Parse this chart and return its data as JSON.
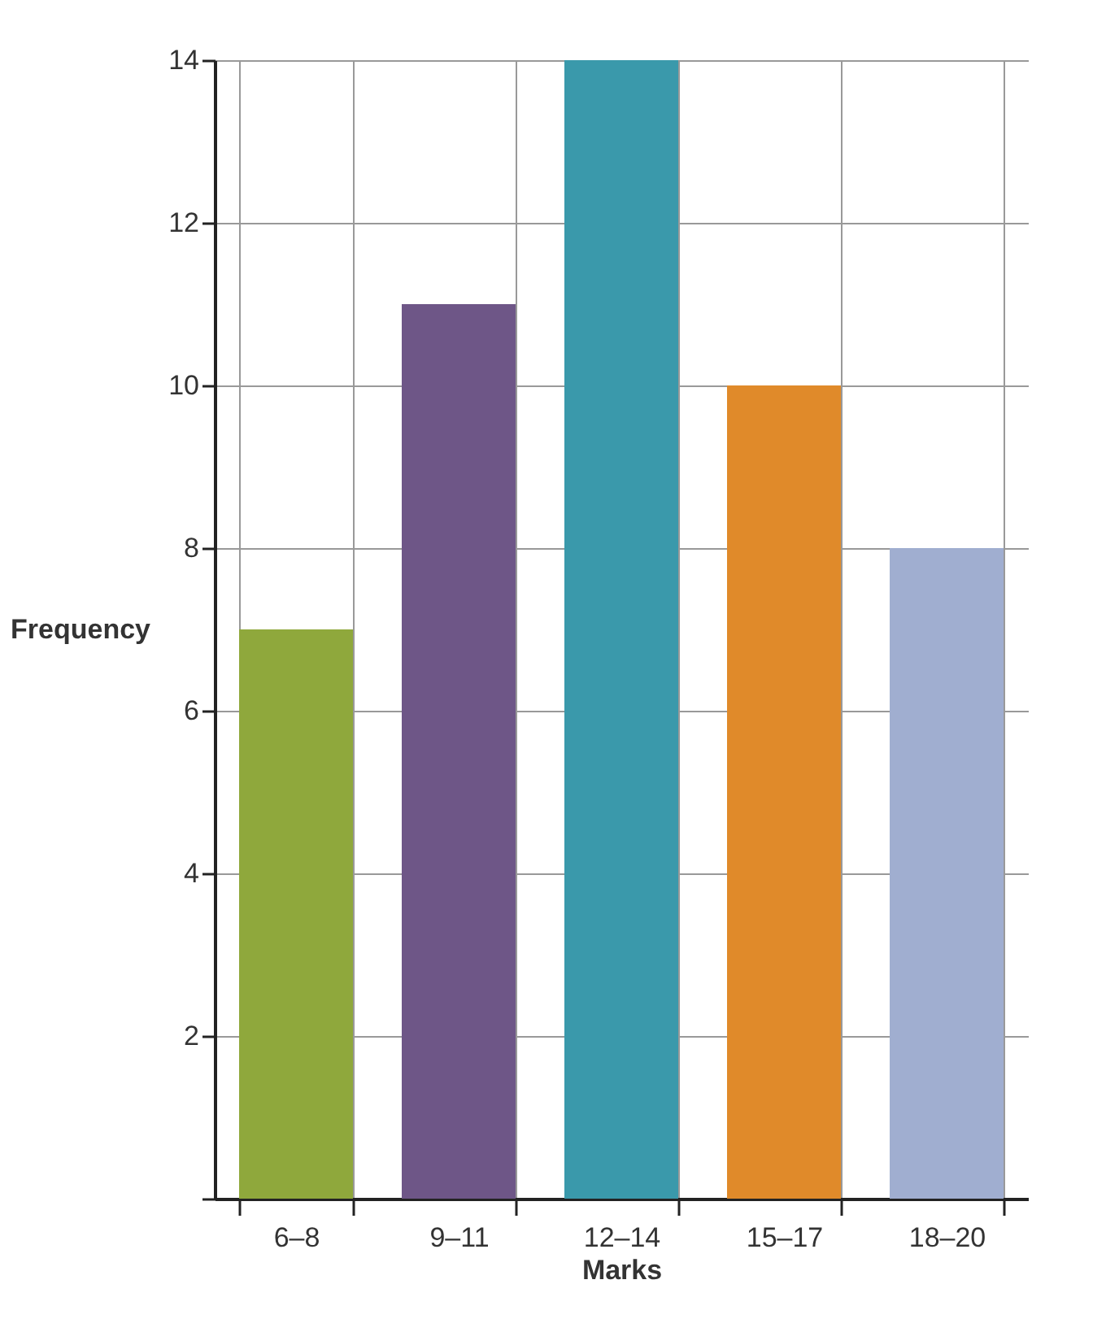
{
  "chart_data": {
    "type": "bar",
    "xlabel": "Marks",
    "ylabel": "Frequency",
    "categories": [
      "6–8",
      "9–11",
      "12–14",
      "15–17",
      "18–20"
    ],
    "values": [
      7,
      11,
      14,
      10,
      8
    ],
    "colors": [
      "#8fa83c",
      "#6e5687",
      "#3a99ab",
      "#e08a2a",
      "#a0aed0"
    ],
    "ylim": [
      0,
      14
    ],
    "yticks": [
      {
        "value": 0,
        "label": null
      },
      2,
      4,
      6,
      8,
      10,
      12,
      14
    ],
    "grid": true
  }
}
